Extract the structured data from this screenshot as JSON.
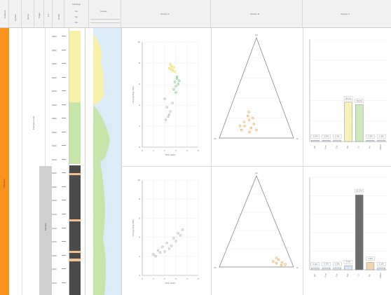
{
  "header": {
    "col_labels": [
      "Erathem",
      "System",
      "Series",
      "Stage",
      "Fm",
      "Depth"
    ],
    "lithology_label": "Lithology",
    "lithology_sub": [
      "Ca",
      "Sa",
      "Sh"
    ],
    "curve_label": "Curves",
    "section_titles": [
      "Section A",
      "Section B",
      "Section C"
    ]
  },
  "stratigraphy": {
    "era_label": "Paleozoic",
    "upper_unit_label": "Formation unit",
    "lower_unit_label": "Member",
    "depths": [
      "2860",
      "2880",
      "2900",
      "2920",
      "2940",
      "2960",
      "2980",
      "3000",
      "3020",
      "3040",
      "3060",
      "3080",
      "3100",
      "3120",
      "3140",
      "3160",
      "3180",
      "3200",
      "3220"
    ]
  },
  "colors": {
    "era": "#f7931e",
    "yellow": "#f7f0a6",
    "green": "#c6e5a8",
    "dark": "#4a4a4a",
    "tan": "#f2c28a",
    "blue": "#dcebf8",
    "gray_band": "#d0d0d0",
    "bar_yellow": "#f6f2b8",
    "bar_green": "#cfe8bd",
    "bar_gray": "#6d6d6d",
    "bar_tan": "#efd4ae",
    "bar_light": "#dde7f4",
    "dot_yellow": "#f2d23a",
    "dot_green": "#6ec27c",
    "dot_orange": "#f0a24a",
    "dot_gray": "#b0b0b0"
  },
  "scatter": {
    "xlabel": "TOC (wt%)",
    "ylabel": "HI (mg HC/g TOC)"
  },
  "ternary": {
    "vertices": [
      "Qz",
      "Cb",
      "Cl"
    ]
  },
  "bars": {
    "top_labels": [
      "1.2%",
      "1.2%",
      "1.3%",
      "38.5%",
      "36.0%",
      "1.2%",
      "1.3%"
    ],
    "bottom_labels": [
      "2.0%",
      "2.1%",
      "2.2%",
      "4.4%",
      "81.0%",
      "7.9%",
      "2.1%"
    ],
    "x_labels": [
      "Qz",
      "Fsp",
      "Cal",
      "Dol",
      "Cl",
      "Py",
      "Other"
    ]
  },
  "chart_data": [
    {
      "type": "scatter",
      "title": "",
      "xlabel": "TOC (wt%)",
      "ylabel": "HI (mg HC/g TOC)",
      "series": [
        {
          "name": "",
          "x": [
            2.4,
            2.6,
            2.7,
            2.8,
            2.5,
            2.9,
            2.6
          ],
          "y": [
            7.5,
            7.7,
            7.3,
            7.6,
            7.9,
            7.2,
            7.4
          ]
        },
        {
          "name": "",
          "x": [
            2.9,
            3.0,
            3.1,
            3.2,
            2.8,
            3.3,
            3.0,
            3.1
          ],
          "y": [
            6.2,
            5.8,
            6.5,
            6.0,
            5.5,
            6.3,
            5.2,
            6.7
          ]
        },
        {
          "name": "",
          "x": [
            2.0,
            2.2,
            2.5,
            2.3,
            2.7,
            2.1,
            2.4
          ],
          "y": [
            4.6,
            3.8,
            3.4,
            2.9,
            4.2,
            2.6,
            3.1
          ]
        }
      ],
      "xlim": [
        0,
        5
      ],
      "ylim": [
        0,
        10
      ]
    },
    {
      "type": "bar",
      "categories": [
        "Qz",
        "Fsp",
        "Cal",
        "Dol",
        "Cl",
        "Py",
        "Other"
      ],
      "values": [
        1.2,
        1.2,
        1.3,
        38.5,
        36.0,
        1.2,
        1.3
      ],
      "ylim": [
        0,
        100
      ]
    },
    {
      "type": "scatter",
      "title": "",
      "xlabel": "TOC (wt%)",
      "ylabel": "HI (mg HC/g TOC)",
      "series": [
        {
          "name": "",
          "x": [
            1.0,
            1.4,
            1.8,
            2.2,
            2.6,
            3.0,
            3.4,
            1.6,
            2.4,
            2.8,
            3.2,
            3.6,
            1.2,
            2.0
          ],
          "y": [
            2.2,
            2.6,
            3.0,
            3.4,
            3.1,
            3.6,
            4.2,
            2.4,
            2.8,
            3.9,
            4.4,
            4.8,
            2.0,
            2.5
          ]
        }
      ],
      "xlim": [
        0,
        5
      ],
      "ylim": [
        0,
        10
      ]
    },
    {
      "type": "bar",
      "categories": [
        "Qz",
        "Fsp",
        "Cal",
        "Dol",
        "Cl",
        "Py",
        "Other"
      ],
      "values": [
        2.0,
        2.1,
        2.2,
        4.4,
        81.0,
        7.9,
        2.1
      ],
      "ylim": [
        0,
        100
      ]
    }
  ]
}
